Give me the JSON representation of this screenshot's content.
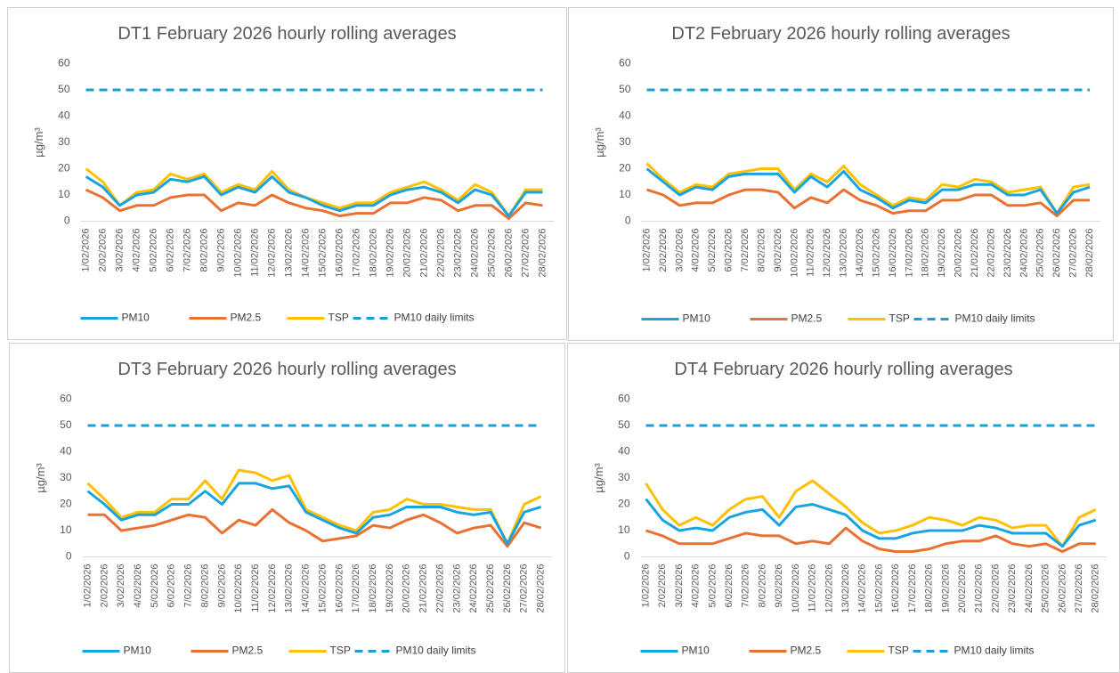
{
  "chart_data": [
    {
      "type": "line",
      "title": "DT1 February 2026 hourly rolling averages",
      "y_label": "µg/m³",
      "categories": [
        "1/02/2026",
        "2/02/2026",
        "3/02/2026",
        "4/02/2026",
        "5/02/2026",
        "6/02/2026",
        "7/02/2026",
        "8/02/2026",
        "9/02/2026",
        "10/02/2026",
        "11/02/2026",
        "12/02/2026",
        "13/02/2026",
        "14/02/2026",
        "15/02/2026",
        "16/02/2026",
        "17/02/2026",
        "18/02/2026",
        "19/02/2026",
        "20/02/2026",
        "21/02/2026",
        "22/02/2026",
        "23/02/2026",
        "24/02/2026",
        "25/02/2026",
        "26/02/2026",
        "27/02/2026",
        "28/02/2026"
      ],
      "ylim": [
        0,
        60
      ],
      "yticks": [
        0,
        10,
        20,
        30,
        40,
        50,
        60
      ],
      "grid": false,
      "series": [
        {
          "name": "PM10",
          "color": "#18a4e0",
          "values": [
            17,
            13,
            6,
            10,
            11,
            16,
            15,
            17,
            10,
            13,
            11,
            17,
            11,
            9,
            6,
            4,
            6,
            6,
            10,
            12,
            13,
            11,
            7,
            12,
            10,
            2,
            11,
            11
          ]
        },
        {
          "name": "PM2.5",
          "color": "#e97132",
          "values": [
            12,
            9,
            4,
            6,
            6,
            9,
            10,
            10,
            4,
            7,
            6,
            10,
            7,
            5,
            4,
            2,
            3,
            3,
            7,
            7,
            9,
            8,
            4,
            6,
            6,
            1,
            7,
            6
          ]
        },
        {
          "name": "TSP",
          "color": "#ffc000",
          "values": [
            20,
            15,
            6,
            11,
            12,
            18,
            16,
            18,
            11,
            14,
            12,
            19,
            12,
            9,
            7,
            5,
            7,
            7,
            11,
            13,
            15,
            12,
            8,
            14,
            11,
            2,
            12,
            12
          ]
        },
        {
          "name": "PM10 daily limits",
          "color": "#1b9fd5",
          "dashed": true,
          "values": [
            50,
            50,
            50,
            50,
            50,
            50,
            50,
            50,
            50,
            50,
            50,
            50,
            50,
            50,
            50,
            50,
            50,
            50,
            50,
            50,
            50,
            50,
            50,
            50,
            50,
            50,
            50,
            50
          ]
        }
      ]
    },
    {
      "type": "line",
      "title": "DT2 February 2026 hourly rolling averages",
      "y_label": "µg/m³",
      "categories": [
        "1/02/2026",
        "2/02/2026",
        "3/02/2026",
        "4/02/2026",
        "5/02/2026",
        "6/02/2026",
        "7/02/2026",
        "8/02/2026",
        "9/02/2026",
        "10/02/2026",
        "11/02/2026",
        "12/02/2026",
        "13/02/2026",
        "14/02/2026",
        "15/02/2026",
        "16/02/2026",
        "17/02/2026",
        "18/02/2026",
        "19/02/2026",
        "20/02/2026",
        "21/02/2026",
        "22/02/2026",
        "23/02/2026",
        "24/02/2026",
        "25/02/2026",
        "26/02/2026",
        "27/02/2026",
        "28/02/2026"
      ],
      "ylim": [
        0,
        60
      ],
      "yticks": [
        0,
        10,
        20,
        30,
        40,
        50,
        60
      ],
      "grid": false,
      "series": [
        {
          "name": "PM10",
          "color": "#18a4e0",
          "values": [
            20,
            15,
            10,
            13,
            12,
            17,
            18,
            18,
            18,
            11,
            17,
            13,
            19,
            12,
            9,
            5,
            8,
            7,
            12,
            12,
            14,
            14,
            10,
            10,
            12,
            3,
            11,
            13
          ]
        },
        {
          "name": "PM2.5",
          "color": "#e97132",
          "values": [
            12,
            10,
            6,
            7,
            7,
            10,
            12,
            12,
            11,
            5,
            9,
            7,
            12,
            8,
            6,
            3,
            4,
            4,
            8,
            8,
            10,
            10,
            6,
            6,
            7,
            2,
            8,
            8
          ]
        },
        {
          "name": "TSP",
          "color": "#ffc000",
          "values": [
            22,
            16,
            11,
            14,
            13,
            18,
            19,
            20,
            20,
            12,
            18,
            15,
            21,
            14,
            10,
            6,
            9,
            8,
            14,
            13,
            16,
            15,
            11,
            12,
            13,
            3,
            13,
            14
          ]
        },
        {
          "name": "PM10 daily limits",
          "color": "#1b9fd5",
          "dashed": true,
          "values": [
            50,
            50,
            50,
            50,
            50,
            50,
            50,
            50,
            50,
            50,
            50,
            50,
            50,
            50,
            50,
            50,
            50,
            50,
            50,
            50,
            50,
            50,
            50,
            50,
            50,
            50,
            50,
            50
          ]
        }
      ]
    },
    {
      "type": "line",
      "title": "DT3 February 2026 hourly rolling averages",
      "y_label": "µg/m³",
      "categories": [
        "1/02/2026",
        "2/02/2026",
        "3/02/2026",
        "4/02/2026",
        "5/02/2026",
        "6/02/2026",
        "7/02/2026",
        "8/02/2026",
        "9/02/2026",
        "10/02/2026",
        "11/02/2026",
        "12/02/2026",
        "13/02/2026",
        "14/02/2026",
        "15/02/2026",
        "16/02/2026",
        "17/02/2026",
        "18/02/2026",
        "19/02/2026",
        "20/02/2026",
        "21/02/2026",
        "22/02/2026",
        "23/02/2026",
        "24/02/2026",
        "25/02/2026",
        "26/02/2026",
        "27/02/2026",
        "28/02/2026"
      ],
      "ylim": [
        0,
        60
      ],
      "yticks": [
        0,
        10,
        20,
        30,
        40,
        50,
        60
      ],
      "grid": false,
      "series": [
        {
          "name": "PM10",
          "color": "#18a4e0",
          "values": [
            25,
            20,
            14,
            16,
            16,
            20,
            20,
            25,
            20,
            28,
            28,
            26,
            27,
            17,
            14,
            11,
            9,
            15,
            16,
            19,
            19,
            19,
            17,
            16,
            17,
            5,
            17,
            19
          ]
        },
        {
          "name": "PM2.5",
          "color": "#e97132",
          "values": [
            16,
            16,
            10,
            11,
            12,
            14,
            16,
            15,
            9,
            14,
            12,
            18,
            13,
            10,
            6,
            7,
            8,
            12,
            11,
            14,
            16,
            13,
            9,
            11,
            12,
            4,
            13,
            11
          ]
        },
        {
          "name": "TSP",
          "color": "#ffc000",
          "values": [
            28,
            22,
            15,
            17,
            17,
            22,
            22,
            29,
            22,
            33,
            32,
            29,
            31,
            18,
            15,
            12,
            10,
            17,
            18,
            22,
            20,
            20,
            19,
            18,
            18,
            5,
            20,
            23
          ]
        },
        {
          "name": "PM10 daily limits",
          "color": "#1b9fd5",
          "dashed": true,
          "values": [
            50,
            50,
            50,
            50,
            50,
            50,
            50,
            50,
            50,
            50,
            50,
            50,
            50,
            50,
            50,
            50,
            50,
            50,
            50,
            50,
            50,
            50,
            50,
            50,
            50,
            50,
            50,
            50
          ]
        }
      ]
    },
    {
      "type": "line",
      "title": "DT4 February 2026 hourly rolling averages",
      "y_label": "µg/m³",
      "categories": [
        "1/02/2026",
        "2/02/2026",
        "3/02/2026",
        "4/02/2026",
        "5/02/2026",
        "6/02/2026",
        "7/02/2026",
        "8/02/2026",
        "9/02/2026",
        "10/02/2026",
        "11/02/2026",
        "12/02/2026",
        "13/02/2026",
        "14/02/2026",
        "15/02/2026",
        "16/02/2026",
        "17/02/2026",
        "18/02/2026",
        "19/02/2026",
        "20/02/2026",
        "21/02/2026",
        "22/02/2026",
        "23/02/2026",
        "24/02/2026",
        "25/02/2026",
        "26/02/2026",
        "27/02/2026",
        "28/02/2026"
      ],
      "ylim": [
        0,
        60
      ],
      "yticks": [
        0,
        10,
        20,
        30,
        40,
        50,
        60
      ],
      "grid": false,
      "series": [
        {
          "name": "PM10",
          "color": "#18a4e0",
          "values": [
            22,
            14,
            10,
            11,
            10,
            15,
            17,
            18,
            12,
            19,
            20,
            18,
            16,
            10,
            7,
            7,
            9,
            10,
            10,
            10,
            12,
            11,
            9,
            9,
            9,
            4,
            12,
            14
          ]
        },
        {
          "name": "PM2.5",
          "color": "#e97132",
          "values": [
            10,
            8,
            5,
            5,
            5,
            7,
            9,
            8,
            8,
            5,
            6,
            5,
            11,
            6,
            3,
            2,
            2,
            3,
            5,
            6,
            6,
            8,
            5,
            4,
            5,
            2,
            5,
            5
          ]
        },
        {
          "name": "TSP",
          "color": "#ffc000",
          "values": [
            28,
            18,
            12,
            15,
            12,
            18,
            22,
            23,
            15,
            25,
            29,
            24,
            19,
            13,
            9,
            10,
            12,
            15,
            14,
            12,
            15,
            14,
            11,
            12,
            12,
            4,
            15,
            18
          ]
        },
        {
          "name": "PM10 daily limits",
          "color": "#1b9fd5",
          "dashed": true,
          "values": [
            50,
            50,
            50,
            50,
            50,
            50,
            50,
            50,
            50,
            50,
            50,
            50,
            50,
            50,
            50,
            50,
            50,
            50,
            50,
            50,
            50,
            50,
            50,
            50,
            50,
            50,
            50,
            50
          ]
        }
      ]
    }
  ]
}
